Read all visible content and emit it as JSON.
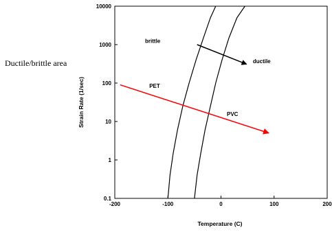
{
  "chart_data": {
    "type": "line",
    "title": "",
    "xlabel": "Temperature (C)",
    "ylabel": "Strain Rate (1/sec)",
    "xlim": [
      -200,
      200
    ],
    "ylim": [
      0.1,
      10000
    ],
    "yscale": "log",
    "grid": false,
    "x_ticks": [
      -200,
      -100,
      0,
      100,
      200
    ],
    "x_tick_labels": [
      "-200",
      "-100",
      "0",
      "100",
      "200"
    ],
    "y_ticks": [
      0.1,
      1,
      10,
      100,
      1000,
      10000
    ],
    "y_tick_labels": [
      "0.1",
      "1",
      "10",
      "100",
      "1000",
      "10000"
    ],
    "series": [
      {
        "x": [
          -100,
          -96,
          -90,
          -82,
          -72,
          -60,
          -47,
          -33,
          -20,
          -10
        ],
        "y": [
          0.1,
          0.4,
          1.5,
          6,
          25,
          100,
          400,
          1500,
          5000,
          10000
        ],
        "color": "#000000"
      },
      {
        "x": [
          -50,
          -45,
          -38,
          -30,
          -20,
          -10,
          2,
          15,
          30,
          45
        ],
        "y": [
          0.1,
          0.4,
          1.5,
          6,
          25,
          100,
          400,
          1500,
          5000,
          10000
        ],
        "color": "#000000"
      }
    ],
    "annotations": [
      {
        "text": "brittle",
        "x": -143,
        "y": 1100
      },
      {
        "text": "ductile",
        "x": 60,
        "y": 330
      },
      {
        "text": "PET",
        "x": -135,
        "y": 75
      },
      {
        "text": "PVC",
        "x": 11,
        "y": 14
      }
    ],
    "arrows": [
      {
        "from": [
          -45,
          1000
        ],
        "to": [
          48,
          310
        ],
        "color": "#000000"
      },
      {
        "from": [
          -190,
          90
        ],
        "to": [
          90,
          5
        ],
        "color": "#ff0000"
      }
    ]
  },
  "overlay_label": "Ductile/brittle area"
}
